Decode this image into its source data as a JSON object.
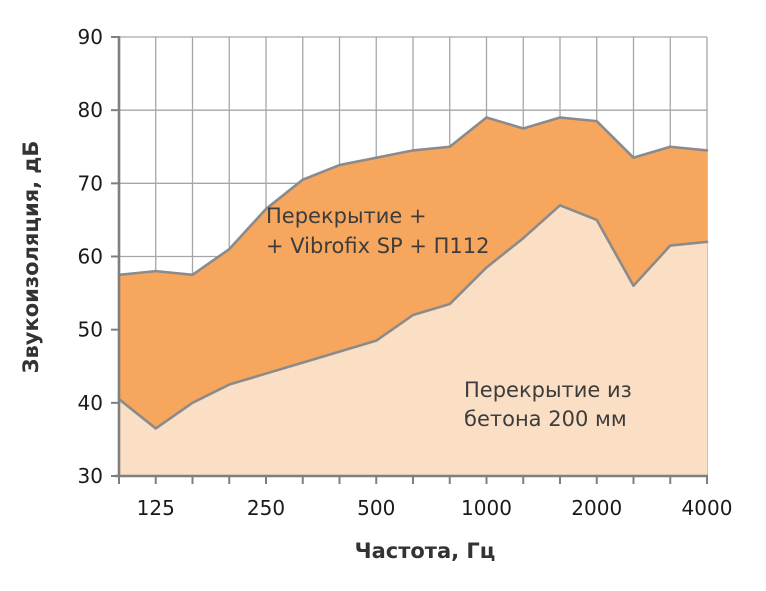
{
  "chart_data": {
    "type": "area",
    "title": "",
    "xlabel": "Частота, Гц",
    "ylabel": "Звукоизоляция, дБ",
    "x_scale": "third-octave band categories (log-spaced frequencies, equal pixel spacing)",
    "categories": [
      100,
      125,
      160,
      200,
      250,
      315,
      400,
      500,
      630,
      800,
      1000,
      1250,
      1600,
      2000,
      2500,
      3150,
      4000
    ],
    "x_tick_labels": [
      "125",
      "250",
      "500",
      "1000",
      "2000",
      "4000"
    ],
    "x_tick_label_band_indices": [
      1,
      4,
      7,
      10,
      13,
      16
    ],
    "y_ticks": [
      30,
      40,
      50,
      60,
      70,
      80,
      90
    ],
    "ylim": [
      30,
      90
    ],
    "grid": true,
    "legend_position": "in-plot annotations",
    "series": [
      {
        "name": "Перекрытие + + Vibrofix SP + П112",
        "label_line1": "Перекрытие +",
        "label_line2": "+ Vibrofix SP + П112",
        "fill": "#F7A65E",
        "values": [
          57.5,
          58,
          57.5,
          61,
          66.5,
          70.5,
          72.5,
          73.5,
          74.5,
          75,
          79,
          77.5,
          79,
          78.5,
          73.5,
          75,
          74.5
        ]
      },
      {
        "name": "Перекрытие из бетона 200 мм",
        "label_line1": "Перекрытие из",
        "label_line2": "бетона 200 мм",
        "fill": "#FBDFC4",
        "values": [
          40.5,
          36.5,
          40,
          42.5,
          44,
          45.5,
          47,
          48.5,
          52,
          53.5,
          58.5,
          62.5,
          67,
          65,
          56,
          61.5,
          62
        ]
      }
    ],
    "colors": {
      "curve_stroke": "#8B8B8B",
      "gridline": "#A6A6A6",
      "axis": "#7F7F7F",
      "text": "#3C3C3C",
      "background": "#FFFFFF"
    }
  }
}
